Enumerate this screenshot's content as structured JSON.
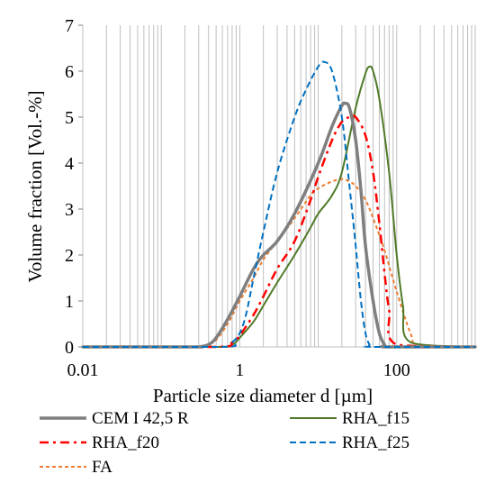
{
  "chart_data": {
    "type": "line",
    "x_scale": "log",
    "xlim": [
      0.01,
      1000
    ],
    "ylim": [
      0,
      7
    ],
    "xlabel": "Particle size diameter d [µm]",
    "ylabel": "Volume fraction [Vol.-%]",
    "x_tick_labels": [
      "0.01",
      "1",
      "100"
    ],
    "x_tick_values": [
      0.01,
      1,
      100
    ],
    "y_tick_values": [
      0,
      1,
      2,
      3,
      4,
      5,
      6,
      7
    ],
    "y_tick_labels": [
      "0",
      "1",
      "2",
      "3",
      "4",
      "5",
      "6",
      "7"
    ],
    "grid": "vertical log gridlines",
    "legend_placement": "bottom",
    "series": [
      {
        "name": "CEM I 42,5 R",
        "color": "#7f7f7f",
        "dash": "solid",
        "width": 3.5,
        "x": [
          0.01,
          0.25,
          0.3,
          0.4,
          0.5,
          0.7,
          1.0,
          1.5,
          2.0,
          3.0,
          5.0,
          10,
          15,
          20,
          22,
          25,
          30,
          35,
          40,
          50,
          60,
          70,
          80,
          1000
        ],
        "y": [
          0,
          0,
          0,
          0.05,
          0.2,
          0.6,
          1.1,
          1.7,
          2.0,
          2.3,
          2.9,
          4.0,
          4.8,
          5.25,
          5.3,
          5.2,
          4.5,
          3.4,
          2.2,
          1.0,
          0.3,
          0.05,
          0,
          0
        ]
      },
      {
        "name": "RHA_f15",
        "color": "#4f7a28",
        "dash": "solid",
        "width": 2,
        "x": [
          0.01,
          0.5,
          0.8,
          1.0,
          1.5,
          2.0,
          3.0,
          5.0,
          8.0,
          10,
          15,
          20,
          30,
          40,
          45,
          50,
          60,
          80,
          100,
          120,
          150,
          1000
        ],
        "y": [
          0,
          0,
          0.05,
          0.2,
          0.55,
          0.9,
          1.4,
          2.0,
          2.6,
          2.9,
          3.3,
          3.8,
          5.2,
          5.95,
          6.1,
          6.0,
          5.4,
          3.8,
          2.0,
          0.9,
          0.1,
          0
        ]
      },
      {
        "name": "RHA_f20",
        "color": "#ff0000",
        "dash": "10,5,3,5",
        "width": 2.5,
        "x": [
          0.01,
          0.5,
          0.8,
          1.0,
          1.5,
          2.0,
          3.0,
          5.0,
          8.0,
          10,
          15,
          20,
          25,
          30,
          40,
          50,
          60,
          70,
          80,
          100,
          1000
        ],
        "y": [
          0,
          0,
          0.1,
          0.25,
          0.7,
          1.1,
          1.7,
          2.3,
          3.2,
          3.7,
          4.5,
          4.9,
          5.0,
          5.0,
          4.6,
          3.8,
          2.7,
          1.6,
          0.8,
          0.05,
          0
        ]
      },
      {
        "name": "RHA_f25",
        "color": "#0070c0",
        "dash": "7,4",
        "width": 2,
        "x": [
          0.01,
          0.6,
          0.8,
          1.0,
          1.2,
          1.5,
          2.0,
          3.0,
          5.0,
          7.0,
          10,
          12,
          15,
          20,
          25,
          30,
          35,
          40,
          45,
          50,
          1000
        ],
        "y": [
          0,
          0,
          0.1,
          0.3,
          0.7,
          1.5,
          2.5,
          3.8,
          5.0,
          5.6,
          6.1,
          6.2,
          6.0,
          5.0,
          3.5,
          2.2,
          1.0,
          0.3,
          0.05,
          0,
          0
        ]
      },
      {
        "name": "FA",
        "color": "#ed7d31",
        "dash": "4,3",
        "width": 2,
        "x": [
          0.01,
          0.3,
          0.4,
          0.5,
          0.7,
          1.0,
          1.5,
          2.0,
          3.0,
          5.0,
          8.0,
          10,
          15,
          20,
          25,
          30,
          40,
          50,
          70,
          100,
          150,
          200,
          1000
        ],
        "y": [
          0,
          0,
          0.05,
          0.15,
          0.5,
          1.0,
          1.5,
          1.9,
          2.3,
          2.8,
          3.3,
          3.45,
          3.6,
          3.65,
          3.6,
          3.5,
          3.2,
          2.8,
          2.1,
          1.2,
          0.3,
          0,
          0
        ]
      }
    ]
  }
}
